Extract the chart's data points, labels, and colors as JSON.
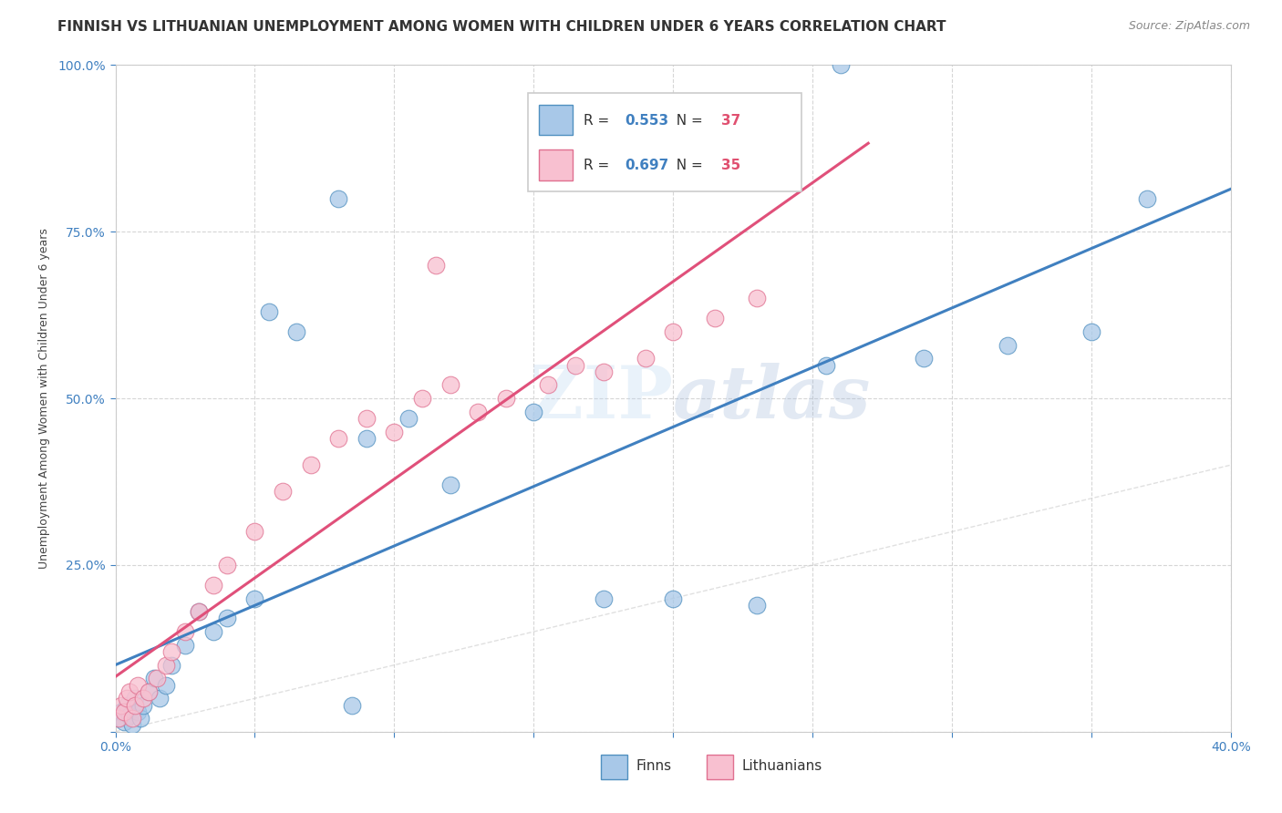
{
  "title": "FINNISH VS LITHUANIAN UNEMPLOYMENT AMONG WOMEN WITH CHILDREN UNDER 6 YEARS CORRELATION CHART",
  "source": "Source: ZipAtlas.com",
  "ylabel": "Unemployment Among Women with Children Under 6 years",
  "xlim": [
    0.0,
    0.4
  ],
  "ylim": [
    0.0,
    1.0
  ],
  "xtick_vals": [
    0.0,
    0.05,
    0.1,
    0.15,
    0.2,
    0.25,
    0.3,
    0.35,
    0.4
  ],
  "ytick_vals": [
    0.0,
    0.25,
    0.5,
    0.75,
    1.0
  ],
  "watermark": "ZIPatlas",
  "blue_fill": "#a8c8e8",
  "blue_edge": "#5090c0",
  "pink_fill": "#f8c0d0",
  "pink_edge": "#e07090",
  "blue_line": "#4080c0",
  "pink_line": "#e0507a",
  "R_blue": 0.553,
  "N_blue": 37,
  "R_pink": 0.697,
  "N_pink": 35,
  "legend_R_color": "#4080c0",
  "legend_N_color": "#e05070",
  "finns_x": [
    0.001,
    0.002,
    0.003,
    0.004,
    0.005,
    0.006,
    0.007,
    0.008,
    0.009,
    0.01,
    0.012,
    0.014,
    0.016,
    0.018,
    0.02,
    0.025,
    0.03,
    0.035,
    0.04,
    0.05,
    0.055,
    0.065,
    0.08,
    0.09,
    0.105,
    0.12,
    0.15,
    0.175,
    0.2,
    0.23,
    0.255,
    0.29,
    0.32,
    0.35,
    0.37,
    0.085,
    0.26
  ],
  "finns_y": [
    0.02,
    0.03,
    0.015,
    0.04,
    0.025,
    0.01,
    0.05,
    0.03,
    0.02,
    0.04,
    0.06,
    0.08,
    0.05,
    0.07,
    0.1,
    0.13,
    0.18,
    0.15,
    0.17,
    0.2,
    0.63,
    0.6,
    0.8,
    0.44,
    0.47,
    0.37,
    0.48,
    0.2,
    0.2,
    0.19,
    0.55,
    0.56,
    0.58,
    0.6,
    0.8,
    0.04,
    1.0
  ],
  "lithuanians_x": [
    0.001,
    0.002,
    0.003,
    0.004,
    0.005,
    0.006,
    0.007,
    0.008,
    0.01,
    0.012,
    0.015,
    0.018,
    0.02,
    0.025,
    0.03,
    0.035,
    0.04,
    0.05,
    0.06,
    0.07,
    0.08,
    0.09,
    0.1,
    0.11,
    0.12,
    0.13,
    0.14,
    0.155,
    0.165,
    0.175,
    0.19,
    0.2,
    0.215,
    0.23,
    0.115
  ],
  "lithuanians_y": [
    0.02,
    0.04,
    0.03,
    0.05,
    0.06,
    0.02,
    0.04,
    0.07,
    0.05,
    0.06,
    0.08,
    0.1,
    0.12,
    0.15,
    0.18,
    0.22,
    0.25,
    0.3,
    0.36,
    0.4,
    0.44,
    0.47,
    0.45,
    0.5,
    0.52,
    0.48,
    0.5,
    0.52,
    0.55,
    0.54,
    0.56,
    0.6,
    0.62,
    0.65,
    0.7
  ],
  "grid_color": "#cccccc",
  "bg_color": "#ffffff",
  "title_fontsize": 11,
  "ylabel_fontsize": 9,
  "tick_fontsize": 10,
  "blue_line_intercept": 0.05,
  "blue_line_slope": 1.875,
  "pink_line_intercept": 0.0,
  "pink_line_slope": 3.5
}
